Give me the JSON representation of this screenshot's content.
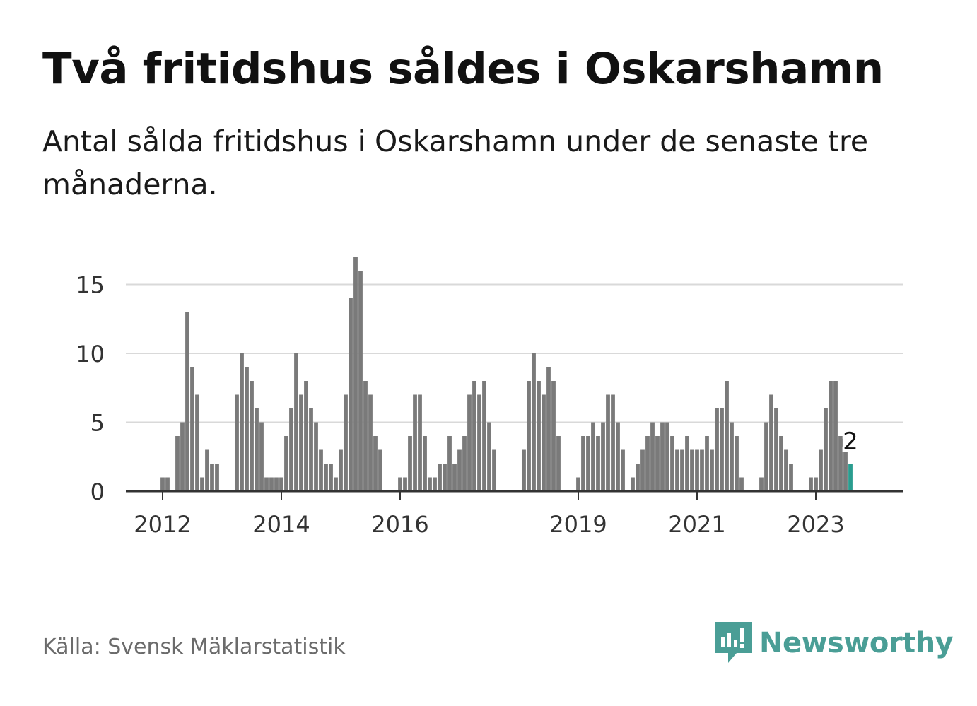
{
  "title": "Två fritidshus såldes i Oskarshamn",
  "subtitle": "Antal sålda fritidshus i Oskarshamn under de senaste tre månaderna.",
  "source": "Källa: Svensk Mäklarstatistik",
  "brand": "Newsworthy",
  "colors": {
    "bar": "#7a7a7a",
    "highlight": "#2a9d8f",
    "grid": "#d9d9d9",
    "axis": "#333333",
    "brand": "#4a9e96"
  },
  "chart_data": {
    "type": "bar",
    "title": "Två fritidshus såldes i Oskarshamn",
    "xlabel": "",
    "ylabel": "",
    "ylim": [
      0,
      17
    ],
    "yticks": [
      0,
      5,
      10,
      15
    ],
    "x_start": "2012-01",
    "xtick_labels": [
      {
        "label": "2012",
        "month_index": 0
      },
      {
        "label": "2014",
        "month_index": 24
      },
      {
        "label": "2016",
        "month_index": 48
      },
      {
        "label": "2019",
        "month_index": 84
      },
      {
        "label": "2021",
        "month_index": 108
      },
      {
        "label": "2023",
        "month_index": 132
      }
    ],
    "values": [
      1,
      1,
      0,
      4,
      5,
      13,
      9,
      7,
      1,
      3,
      2,
      2,
      0,
      0,
      0,
      7,
      10,
      9,
      8,
      6,
      5,
      1,
      1,
      1,
      1,
      4,
      6,
      10,
      7,
      8,
      6,
      5,
      3,
      2,
      2,
      1,
      3,
      7,
      14,
      17,
      16,
      8,
      7,
      4,
      3,
      0,
      0,
      0,
      1,
      1,
      4,
      7,
      7,
      4,
      1,
      1,
      2,
      2,
      4,
      2,
      3,
      4,
      7,
      8,
      7,
      8,
      5,
      3,
      0,
      0,
      0,
      0,
      0,
      3,
      8,
      10,
      8,
      7,
      9,
      8,
      4,
      0,
      0,
      0,
      1,
      4,
      4,
      5,
      4,
      5,
      7,
      7,
      5,
      3,
      0,
      1,
      2,
      3,
      4,
      5,
      4,
      5,
      5,
      4,
      3,
      3,
      4,
      3,
      3,
      3,
      4,
      3,
      6,
      6,
      8,
      5,
      4,
      1,
      0,
      0,
      0,
      1,
      5,
      7,
      6,
      4,
      3,
      2,
      0,
      0,
      0,
      1,
      1,
      3,
      6,
      8,
      8,
      4,
      3,
      2
    ],
    "highlight_index": 139,
    "highlight_label": "2"
  }
}
